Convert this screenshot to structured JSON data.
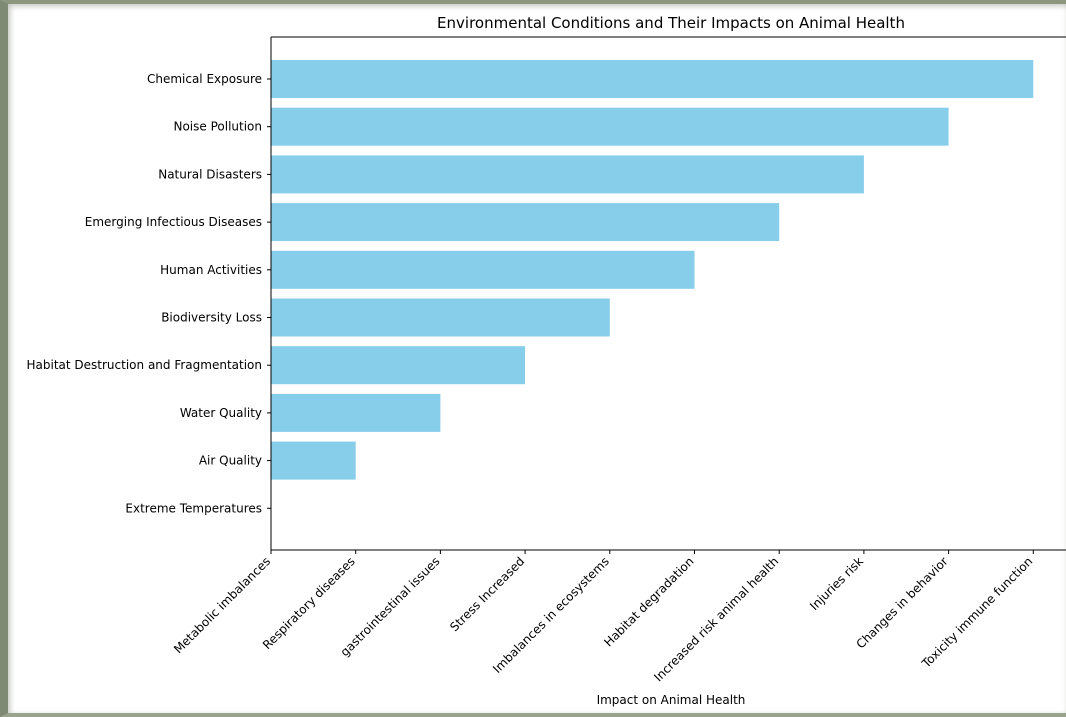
{
  "chart_data": {
    "type": "bar",
    "orientation": "horizontal",
    "title": "Environmental Conditions and Their Impacts on Animal Health",
    "xlabel": "Impact on Animal Health",
    "ylabel": "",
    "categories": [
      "Extreme Temperatures",
      "Air Quality",
      "Water Quality",
      "Habitat Destruction and Fragmentation",
      "Biodiversity Loss",
      "Human Activities",
      "Emerging Infectious Diseases",
      "Natural Disasters",
      "Noise Pollution",
      "Chemical Exposure"
    ],
    "x_ticks": [
      "Metabolic imbalances",
      "Respiratory diseases",
      "gastrointestinal issues",
      "Stress Increased",
      "Imbalances in ecosystems",
      "Habitat degradation",
      "Increased risk animal health",
      "Injuries risk",
      "Changes in behavior",
      "Toxicity immune function"
    ],
    "series": [
      {
        "values": [
          "Metabolic imbalances",
          "Respiratory diseases",
          "gastrointestinal issues",
          "Stress Increased",
          "Imbalances in ecosystems",
          "Habitat degradation",
          "Increased risk animal health",
          "Injuries risk",
          "Changes in behavior",
          "Toxicity immune function"
        ],
        "color": "#87ceeb"
      }
    ],
    "grid": false,
    "legend": "none"
  }
}
